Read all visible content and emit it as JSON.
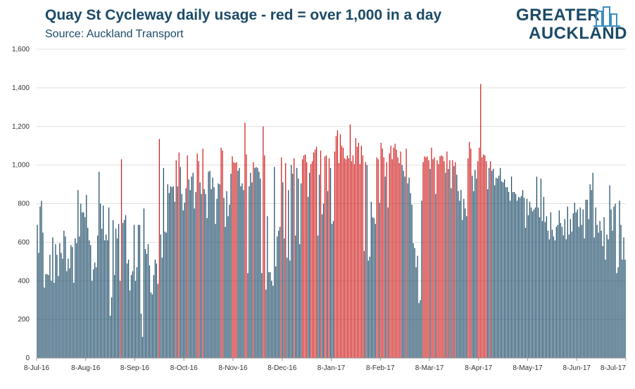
{
  "header": {
    "title": "Quay St Cycleway daily usage - red = over 1,000 in a day",
    "subtitle": "Source: Auckland Transport"
  },
  "logo": {
    "line1": "GREATER",
    "line2": "AUCKLAND",
    "icon": "city-skyline-icon"
  },
  "colors": {
    "normal": "#1b4a67",
    "over_threshold": "#d11e1e",
    "grid": "#e0e0e0",
    "text": "#1b4a67"
  },
  "chart_data": {
    "type": "bar",
    "title": "Quay St Cycleway daily usage - red = over 1,000 in a day",
    "subtitle": "Source: Auckland Transport",
    "xlabel": "",
    "ylabel": "",
    "ylim": [
      0,
      1600
    ],
    "yticks": [
      0,
      200,
      400,
      600,
      800,
      1000,
      1200,
      1400,
      1600
    ],
    "ytick_labels": [
      "0",
      "200",
      "400",
      "600",
      "800",
      "1,000",
      "1,200",
      "1,400",
      "1,600"
    ],
    "xtick_labels": [
      "8-Jul-16",
      "8-Aug-16",
      "8-Sep-16",
      "8-Oct-16",
      "8-Nov-16",
      "8-Dec-16",
      "8-Jan-17",
      "8-Feb-17",
      "8-Mar-17",
      "8-Apr-17",
      "8-May-17",
      "8-Jun-17",
      "8-Jul-17"
    ],
    "threshold": 1000,
    "grid": "horizontal",
    "legend": "none",
    "x_start": "2016-07-08",
    "x_end": "2017-07-08",
    "values": [
      690,
      545,
      785,
      815,
      650,
      365,
      435,
      435,
      430,
      535,
      400,
      625,
      390,
      590,
      535,
      425,
      595,
      545,
      515,
      660,
      630,
      450,
      515,
      465,
      585,
      575,
      390,
      620,
      595,
      870,
      630,
      800,
      755,
      755,
      730,
      845,
      675,
      610,
      585,
      400,
      460,
      495,
      470,
      635,
      965,
      800,
      670,
      790,
      610,
      640,
      610,
      780,
      220,
      315,
      715,
      430,
      670,
      620,
      695,
      400,
      1030,
      700,
      715,
      740,
      490,
      510,
      350,
      430,
      450,
      690,
      400,
      470,
      690,
      690,
      230,
      110,
      775,
      565,
      540,
      590,
      480,
      340,
      330,
      430,
      510,
      490,
      385,
      1135,
      640,
      520,
      985,
      655,
      650,
      900,
      855,
      890,
      885,
      890,
      810,
      1025,
      890,
      1065,
      990,
      850,
      765,
      805,
      880,
      1050,
      925,
      870,
      940,
      960,
      775,
      860,
      1060,
      1020,
      910,
      850,
      1085,
      875,
      850,
      725,
      965,
      970,
      875,
      935,
      885,
      695,
      825,
      905,
      900,
      1090,
      1075,
      830,
      680,
      865,
      735,
      795,
      955,
      1045,
      1015,
      1010,
      1015,
      970,
      985,
      890,
      905,
      870,
      1220,
      1055,
      440,
      890,
      960,
      910,
      1015,
      985,
      990,
      985,
      965,
      930,
      440,
      1200,
      1050,
      355,
      735,
      445,
      445,
      400,
      375,
      990,
      475,
      630,
      660,
      680,
      1040,
      910,
      620,
      1010,
      520,
      870,
      505,
      1000,
      955,
      1035,
      635,
      985,
      930,
      590,
      905,
      1030,
      1050,
      1055,
      1015,
      835,
      960,
      1005,
      1020,
      1065,
      1080,
      1095,
      635,
      950,
      1075,
      745,
      800,
      1045,
      1050,
      865,
      1035,
      985,
      695,
      710,
      1070,
      1150,
      1180,
      1010,
      1160,
      1100,
      1090,
      1035,
      1030,
      1050,
      1035,
      1210,
      1020,
      1050,
      1005,
      1140,
      1095,
      1115,
      1005,
      1100,
      1050,
      555,
      1015,
      1000,
      505,
      525,
      810,
      730,
      725,
      695,
      1040,
      1030,
      805,
      1115,
      1085,
      1040,
      940,
      1015,
      780,
      1060,
      1100,
      1030,
      1090,
      1110,
      1080,
      1040,
      1010,
      1070,
      1000,
      970,
      940,
      1085,
      905,
      935,
      855,
      795,
      595,
      570,
      470,
      530,
      285,
      300,
      815,
      1015,
      1045,
      1040,
      1045,
      1025,
      980,
      1090,
      1030,
      1040,
      850,
      1025,
      1005,
      1045,
      1050,
      1045,
      1020,
      960,
      1070,
      980,
      1025,
      880,
      1025,
      995,
      1015,
      950,
      865,
      815,
      870,
      715,
      825,
      775,
      735,
      1035,
      1120,
      1085,
      945,
      865,
      975,
      930,
      1020,
      1090,
      1420,
      1040,
      1055,
      1050,
      1020,
      875,
      985,
      1020,
      970,
      980,
      895,
      935,
      930,
      945,
      985,
      915,
      910,
      925,
      885,
      885,
      860,
      815,
      940,
      860,
      860,
      850,
      815,
      835,
      830,
      840,
      870,
      830,
      675,
      825,
      740,
      810,
      780,
      760,
      770,
      780,
      940,
      780,
      730,
      930,
      710,
      835,
      705,
      735,
      660,
      615,
      755,
      665,
      630,
      610,
      680,
      690,
      765,
      700,
      680,
      635,
      720,
      615,
      785,
      640,
      720,
      655,
      750,
      805,
      755,
      770,
      680,
      780,
      690,
      770,
      620,
      820,
      820,
      720,
      900,
      870,
      960,
      625,
      780,
      690,
      650,
      710,
      660,
      580,
      730,
      510,
      640,
      615,
      895,
      770,
      660,
      785,
      800,
      440,
      470,
      815,
      690,
      510,
      625,
      510
    ]
  }
}
